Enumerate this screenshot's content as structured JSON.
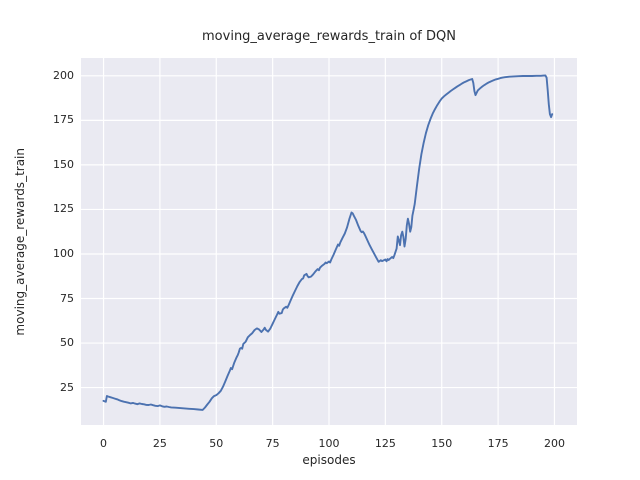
{
  "chart_data": {
    "type": "line",
    "title": "moving_average_rewards_train of DQN",
    "xlabel": "episodes",
    "ylabel": "moving_average_rewards_train",
    "series_name": "DQN",
    "x_ticks": [
      0,
      25,
      50,
      75,
      100,
      125,
      150,
      175,
      200
    ],
    "y_ticks": [
      25,
      50,
      75,
      100,
      125,
      150,
      175,
      200
    ],
    "xlim": [
      -10,
      210
    ],
    "ylim": [
      4,
      210
    ],
    "grid": true,
    "legend_position": "none",
    "colors": {
      "line": "#4c72b0",
      "plot_background": "#eaeaf2",
      "gridline": "#ffffff",
      "text": "#262626",
      "figure_background": "#ffffff"
    },
    "points": [
      [
        0,
        17.5
      ],
      [
        1,
        17.0
      ],
      [
        1.5,
        20.3
      ],
      [
        2,
        20.0
      ],
      [
        3,
        19.6
      ],
      [
        4,
        19.2
      ],
      [
        5,
        18.8
      ],
      [
        6,
        18.4
      ],
      [
        7,
        17.9
      ],
      [
        8,
        17.4
      ],
      [
        9,
        17.1
      ],
      [
        10,
        16.8
      ],
      [
        11,
        16.5
      ],
      [
        12,
        16.1
      ],
      [
        13,
        16.4
      ],
      [
        14,
        16.0
      ],
      [
        15,
        15.7
      ],
      [
        16,
        16.1
      ],
      [
        17,
        15.8
      ],
      [
        18,
        15.6
      ],
      [
        19,
        15.3
      ],
      [
        20,
        15.2
      ],
      [
        21,
        15.5
      ],
      [
        22,
        15.1
      ],
      [
        23,
        14.8
      ],
      [
        24,
        14.6
      ],
      [
        25,
        15.0
      ],
      [
        26,
        14.5
      ],
      [
        27,
        14.2
      ],
      [
        28,
        14.4
      ],
      [
        29,
        14.1
      ],
      [
        30,
        13.9
      ],
      [
        32,
        13.7
      ],
      [
        34,
        13.5
      ],
      [
        36,
        13.3
      ],
      [
        38,
        13.1
      ],
      [
        40,
        12.9
      ],
      [
        42,
        12.7
      ],
      [
        44,
        12.5
      ],
      [
        45,
        13.8
      ],
      [
        46,
        15.5
      ],
      [
        47,
        17.0
      ],
      [
        48,
        19.0
      ],
      [
        49,
        20.2
      ],
      [
        50,
        20.8
      ],
      [
        51,
        21.8
      ],
      [
        52,
        23.2
      ],
      [
        53,
        25.5
      ],
      [
        54,
        28.5
      ],
      [
        55,
        31.5
      ],
      [
        56,
        34.5
      ],
      [
        56.5,
        36.0
      ],
      [
        57,
        35.3
      ],
      [
        58,
        39.0
      ],
      [
        59,
        42.0
      ],
      [
        59.5,
        43.2
      ],
      [
        60,
        44.8
      ],
      [
        60.5,
        46.8
      ],
      [
        61,
        47.3
      ],
      [
        61.5,
        46.8
      ],
      [
        62,
        49.5
      ],
      [
        63,
        50.7
      ],
      [
        64,
        53.2
      ],
      [
        65,
        54.5
      ],
      [
        66,
        55.6
      ],
      [
        67,
        57.3
      ],
      [
        68,
        58.2
      ],
      [
        69,
        57.6
      ],
      [
        70,
        56.2
      ],
      [
        71,
        57.6
      ],
      [
        71.5,
        58.6
      ],
      [
        72,
        57.4
      ],
      [
        73,
        56.4
      ],
      [
        74,
        58.2
      ],
      [
        75,
        60.8
      ],
      [
        76,
        63.5
      ],
      [
        77,
        66.0
      ],
      [
        77.5,
        67.5
      ],
      [
        78,
        66.5
      ],
      [
        79,
        66.8
      ],
      [
        79.5,
        68.8
      ],
      [
        80,
        69.5
      ],
      [
        81,
        70.4
      ],
      [
        81.5,
        69.8
      ],
      [
        82,
        71.0
      ],
      [
        83,
        74.0
      ],
      [
        84,
        76.8
      ],
      [
        85,
        79.5
      ],
      [
        86,
        82.0
      ],
      [
        87,
        84.3
      ],
      [
        88,
        85.9
      ],
      [
        88.5,
        86.3
      ],
      [
        89,
        88.0
      ],
      [
        90,
        88.8
      ],
      [
        90.5,
        87.6
      ],
      [
        91,
        86.9
      ],
      [
        92,
        87.3
      ],
      [
        93,
        88.6
      ],
      [
        94,
        90.3
      ],
      [
        95,
        91.5
      ],
      [
        95.5,
        90.9
      ],
      [
        96,
        92.3
      ],
      [
        97,
        93.5
      ],
      [
        98,
        94.4
      ],
      [
        98.5,
        95.2
      ],
      [
        99,
        94.8
      ],
      [
        100,
        95.8
      ],
      [
        100.5,
        95.2
      ],
      [
        101,
        96.9
      ],
      [
        102,
        99.5
      ],
      [
        103,
        102.5
      ],
      [
        104,
        105.3
      ],
      [
        104.5,
        104.6
      ],
      [
        105,
        106.5
      ],
      [
        106,
        109.0
      ],
      [
        107,
        111.5
      ],
      [
        108,
        114.8
      ],
      [
        109,
        119.5
      ],
      [
        110,
        123.3
      ],
      [
        110.5,
        122.8
      ],
      [
        111,
        121.5
      ],
      [
        112,
        119.0
      ],
      [
        113,
        115.8
      ],
      [
        114,
        112.9
      ],
      [
        114.5,
        112.2
      ],
      [
        115,
        112.6
      ],
      [
        115.5,
        111.8
      ],
      [
        116,
        110.5
      ],
      [
        117,
        107.8
      ],
      [
        118,
        105.0
      ],
      [
        119,
        102.6
      ],
      [
        120,
        100.2
      ],
      [
        121,
        97.9
      ],
      [
        122,
        95.6
      ],
      [
        123,
        96.5
      ],
      [
        123.5,
        96.0
      ],
      [
        124,
        96.3
      ],
      [
        125,
        96.9
      ],
      [
        125.5,
        95.9
      ],
      [
        126,
        97.1
      ],
      [
        126.5,
        96.6
      ],
      [
        127,
        97.3
      ],
      [
        128,
        98.3
      ],
      [
        128.5,
        97.7
      ],
      [
        129,
        99.3
      ],
      [
        130,
        103.0
      ],
      [
        130.5,
        109.8
      ],
      [
        131,
        107.5
      ],
      [
        131.5,
        104.9
      ],
      [
        132,
        110.5
      ],
      [
        132.5,
        112.5
      ],
      [
        133,
        109.5
      ],
      [
        133.5,
        104.2
      ],
      [
        134,
        108.5
      ],
      [
        134.5,
        116.0
      ],
      [
        135,
        119.8
      ],
      [
        135.5,
        117.0
      ],
      [
        136,
        112.5
      ],
      [
        136.5,
        115.0
      ],
      [
        137,
        121.5
      ],
      [
        137.5,
        124.5
      ],
      [
        138,
        128.0
      ],
      [
        139,
        138.0
      ],
      [
        140,
        148.0
      ],
      [
        141,
        156.0
      ],
      [
        142,
        162.5
      ],
      [
        143,
        167.8
      ],
      [
        144,
        172.2
      ],
      [
        145,
        175.8
      ],
      [
        146,
        178.8
      ],
      [
        147,
        181.3
      ],
      [
        148,
        183.5
      ],
      [
        149,
        185.5
      ],
      [
        150,
        187.2
      ],
      [
        151,
        188.5
      ],
      [
        152,
        189.5
      ],
      [
        153,
        190.5
      ],
      [
        154,
        191.5
      ],
      [
        155,
        192.4
      ],
      [
        156,
        193.3
      ],
      [
        157,
        194.1
      ],
      [
        158,
        194.9
      ],
      [
        159,
        195.7
      ],
      [
        160,
        196.4
      ],
      [
        161,
        197.0
      ],
      [
        162,
        197.6
      ],
      [
        163,
        198.0
      ],
      [
        163.5,
        198.2
      ],
      [
        164,
        196.0
      ],
      [
        164.5,
        191.5
      ],
      [
        165,
        189.2
      ],
      [
        166,
        191.8
      ],
      [
        167,
        193.0
      ],
      [
        168,
        194.0
      ],
      [
        169,
        194.9
      ],
      [
        170,
        195.7
      ],
      [
        171,
        196.4
      ],
      [
        172,
        197.0
      ],
      [
        173,
        197.5
      ],
      [
        174,
        198.0
      ],
      [
        175,
        198.3
      ],
      [
        176,
        198.7
      ],
      [
        177,
        199.0
      ],
      [
        178,
        199.2
      ],
      [
        179,
        199.4
      ],
      [
        180,
        199.5
      ],
      [
        182,
        199.7
      ],
      [
        184,
        199.8
      ],
      [
        186,
        199.9
      ],
      [
        188,
        199.9
      ],
      [
        190,
        199.9
      ],
      [
        192,
        200.0
      ],
      [
        194,
        200.0
      ],
      [
        195,
        200.1
      ],
      [
        196,
        200.2
      ],
      [
        196.5,
        199.0
      ],
      [
        197,
        192.0
      ],
      [
        197.5,
        184.0
      ],
      [
        198,
        178.5
      ],
      [
        198.5,
        176.8
      ],
      [
        199,
        178.5
      ]
    ]
  }
}
